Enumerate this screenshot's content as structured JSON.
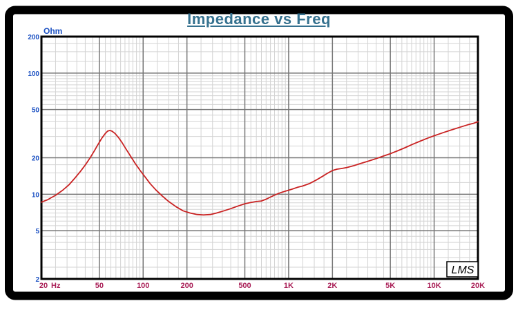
{
  "window": {
    "background": "#ffffff",
    "frame_color": "#000000"
  },
  "title": {
    "text": "Impedance vs Freq",
    "color": "#35718f"
  },
  "chart_data": {
    "type": "line",
    "title": "Impedance vs Freq",
    "grid": {
      "major_color": "#767676",
      "minor_color": "#d3d3d3",
      "multipliers": [
        1,
        1.25,
        1.5,
        1.75,
        2,
        2.5,
        3,
        3.5,
        4,
        4.5,
        5,
        5.5,
        6,
        6.5,
        7,
        7.5,
        8,
        8.5,
        9,
        9.5
      ],
      "major_multipliers": [
        1,
        2,
        5
      ]
    },
    "x_axis": {
      "unit_label": "Hz",
      "scale": "log",
      "min": 20,
      "max": 20000,
      "tick_color": "#a91e56",
      "ticks": [
        {
          "value": 20,
          "label": "20"
        },
        {
          "value": 50,
          "label": "50"
        },
        {
          "value": 100,
          "label": "100"
        },
        {
          "value": 200,
          "label": "200"
        },
        {
          "value": 500,
          "label": "500"
        },
        {
          "value": 1000,
          "label": "1K"
        },
        {
          "value": 2000,
          "label": "2K"
        },
        {
          "value": 5000,
          "label": "5K"
        },
        {
          "value": 10000,
          "label": "10K"
        },
        {
          "value": 20000,
          "label": "20K"
        }
      ]
    },
    "y_axis": {
      "unit_label": "Ohm",
      "scale": "log",
      "min": 2,
      "max": 200,
      "tick_color": "#1d52c3",
      "ticks": [
        {
          "value": 200,
          "label": "200"
        },
        {
          "value": 100,
          "label": "100"
        },
        {
          "value": 50,
          "label": "50"
        },
        {
          "value": 20,
          "label": "20"
        },
        {
          "value": 10,
          "label": "10"
        },
        {
          "value": 5,
          "label": "5"
        },
        {
          "value": 2,
          "label": "2"
        }
      ]
    },
    "series": [
      {
        "name": "impedance",
        "color": "#c92222",
        "points": [
          [
            20,
            8.6
          ],
          [
            22,
            9.0
          ],
          [
            25,
            9.8
          ],
          [
            28,
            10.8
          ],
          [
            31,
            12.0
          ],
          [
            34,
            13.6
          ],
          [
            37,
            15.4
          ],
          [
            40,
            17.4
          ],
          [
            43,
            19.8
          ],
          [
            46,
            22.6
          ],
          [
            49,
            25.8
          ],
          [
            52,
            29.0
          ],
          [
            55,
            31.8
          ],
          [
            57,
            33.2
          ],
          [
            59,
            33.6
          ],
          [
            61,
            33.2
          ],
          [
            64,
            31.8
          ],
          [
            68,
            29.2
          ],
          [
            72,
            26.4
          ],
          [
            77,
            23.2
          ],
          [
            82,
            20.6
          ],
          [
            88,
            18.0
          ],
          [
            95,
            15.8
          ],
          [
            103,
            13.9
          ],
          [
            112,
            12.2
          ],
          [
            122,
            10.9
          ],
          [
            135,
            9.7
          ],
          [
            150,
            8.7
          ],
          [
            168,
            7.9
          ],
          [
            188,
            7.3
          ],
          [
            210,
            7.0
          ],
          [
            235,
            6.8
          ],
          [
            260,
            6.75
          ],
          [
            290,
            6.8
          ],
          [
            320,
            7.0
          ],
          [
            360,
            7.3
          ],
          [
            400,
            7.6
          ],
          [
            450,
            8.0
          ],
          [
            500,
            8.35
          ],
          [
            550,
            8.55
          ],
          [
            600,
            8.7
          ],
          [
            650,
            8.8
          ],
          [
            700,
            9.1
          ],
          [
            780,
            9.7
          ],
          [
            860,
            10.2
          ],
          [
            950,
            10.6
          ],
          [
            1050,
            11.0
          ],
          [
            1150,
            11.4
          ],
          [
            1250,
            11.7
          ],
          [
            1400,
            12.3
          ],
          [
            1550,
            13.1
          ],
          [
            1700,
            14.0
          ],
          [
            1850,
            14.9
          ],
          [
            2000,
            15.7
          ],
          [
            2150,
            16.1
          ],
          [
            2300,
            16.3
          ],
          [
            2500,
            16.6
          ],
          [
            2800,
            17.2
          ],
          [
            3100,
            17.9
          ],
          [
            3500,
            18.7
          ],
          [
            4000,
            19.7
          ],
          [
            4500,
            20.7
          ],
          [
            5000,
            21.6
          ],
          [
            5600,
            22.8
          ],
          [
            6300,
            24.2
          ],
          [
            7100,
            25.8
          ],
          [
            8000,
            27.4
          ],
          [
            9000,
            29.0
          ],
          [
            10000,
            30.4
          ],
          [
            11500,
            32.2
          ],
          [
            13000,
            33.8
          ],
          [
            15000,
            35.7
          ],
          [
            17000,
            37.4
          ],
          [
            18500,
            38.4
          ],
          [
            20000,
            39.6
          ]
        ]
      }
    ],
    "logo_text": "LMS"
  }
}
